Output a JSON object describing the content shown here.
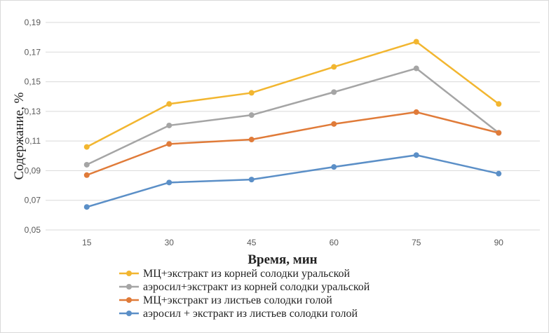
{
  "chart_data": {
    "type": "line",
    "title": "",
    "xlabel": "Время, мин",
    "ylabel": "Содержание, %",
    "categories": [
      "15",
      "30",
      "45",
      "60",
      "75",
      "90"
    ],
    "y_ticks": [
      "0,05",
      "0,07",
      "0,09",
      "0,11",
      "0,13",
      "0,15",
      "0,17",
      "0,19"
    ],
    "ylim": [
      0.05,
      0.19
    ],
    "grid": true,
    "legend_position": "bottom-left",
    "series": [
      {
        "name": "МЦ+экстракт из корней солодки уральской",
        "color": "#F2B630",
        "values": [
          0.106,
          0.135,
          0.1425,
          0.16,
          0.177,
          0.135
        ]
      },
      {
        "name": "аэросил+экстракт из корней солодки уральской",
        "color": "#A5A5A5",
        "values": [
          0.094,
          0.1205,
          0.1275,
          0.143,
          0.159,
          0.1155
        ]
      },
      {
        "name": "МЦ+экстракт из листьев солодки голой",
        "color": "#E07B39",
        "values": [
          0.087,
          0.108,
          0.111,
          0.1215,
          0.1295,
          0.1155
        ]
      },
      {
        "name": "аэросил + экстракт из листьев солодки голой",
        "color": "#5B8FC7",
        "values": [
          0.0655,
          0.082,
          0.084,
          0.0925,
          0.1005,
          0.088
        ]
      }
    ]
  }
}
